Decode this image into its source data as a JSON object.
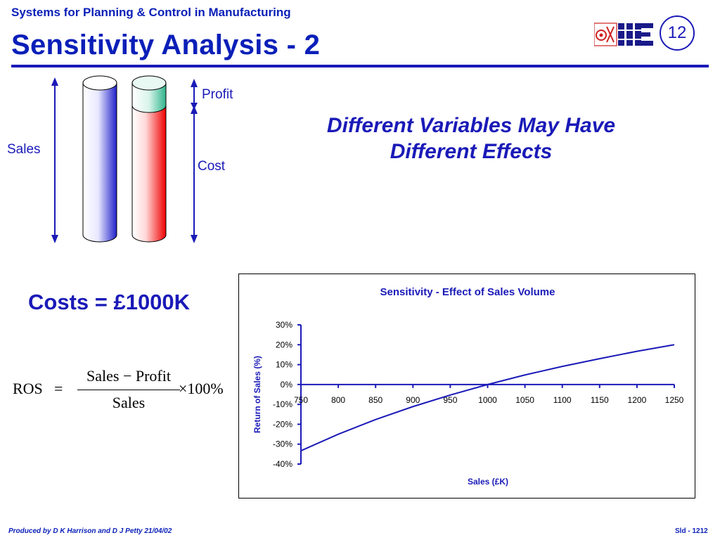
{
  "header": {
    "course_title": "Systems for Planning & Control in Manufacturing",
    "slide_title": "Sensitivity Analysis - 2",
    "slide_number": "12",
    "logo_icon": "iie-logo-icon"
  },
  "diagram": {
    "sales_label": "Sales",
    "profit_label": "Profit",
    "cost_label": "Cost"
  },
  "headline": {
    "line1": "Different Variables May Have",
    "line2": "Different Effects"
  },
  "costs_text": "Costs = £1000K",
  "formula": {
    "lhs": "ROS",
    "equals": "=",
    "numerator": "Sales − Profit",
    "denominator": "Sales",
    "multiplier": "×100%"
  },
  "chart_data": {
    "type": "line",
    "title": "Sensitivity - Effect of Sales Volume",
    "xlabel": "Sales (£K)",
    "ylabel": "Return of Sales (%)",
    "x": [
      750,
      800,
      850,
      900,
      950,
      1000,
      1050,
      1100,
      1150,
      1200,
      1250
    ],
    "x_tick_labels": [
      "750",
      "800",
      "850",
      "900",
      "950",
      "1000",
      "1050",
      "1100",
      "1150",
      "1200",
      "1250"
    ],
    "y_tick_labels": [
      "30%",
      "20%",
      "10%",
      "0%",
      "-10%",
      "-20%",
      "-30%",
      "-40%"
    ],
    "y_ticks": [
      30,
      20,
      10,
      0,
      -10,
      -20,
      -30,
      -40
    ],
    "ylim": [
      -40,
      30
    ],
    "xlim": [
      750,
      1250
    ],
    "series": [
      {
        "values": [
          -33.3,
          -25.0,
          -17.6,
          -11.1,
          -5.3,
          0.0,
          4.8,
          9.1,
          13.0,
          16.7,
          20.0
        ]
      }
    ],
    "line_color": "#1a1ab8",
    "grid": false
  },
  "footer": {
    "produced_by": "Produced by D K Harrison and D J Petty 21/04/02",
    "slide_ref": "Sld - 1212"
  },
  "colors": {
    "brand_blue": "#0a1fb8",
    "cylinder_blue": "#3a3ad8",
    "cylinder_red": "#f01010",
    "cylinder_green": "#2fb38a"
  }
}
